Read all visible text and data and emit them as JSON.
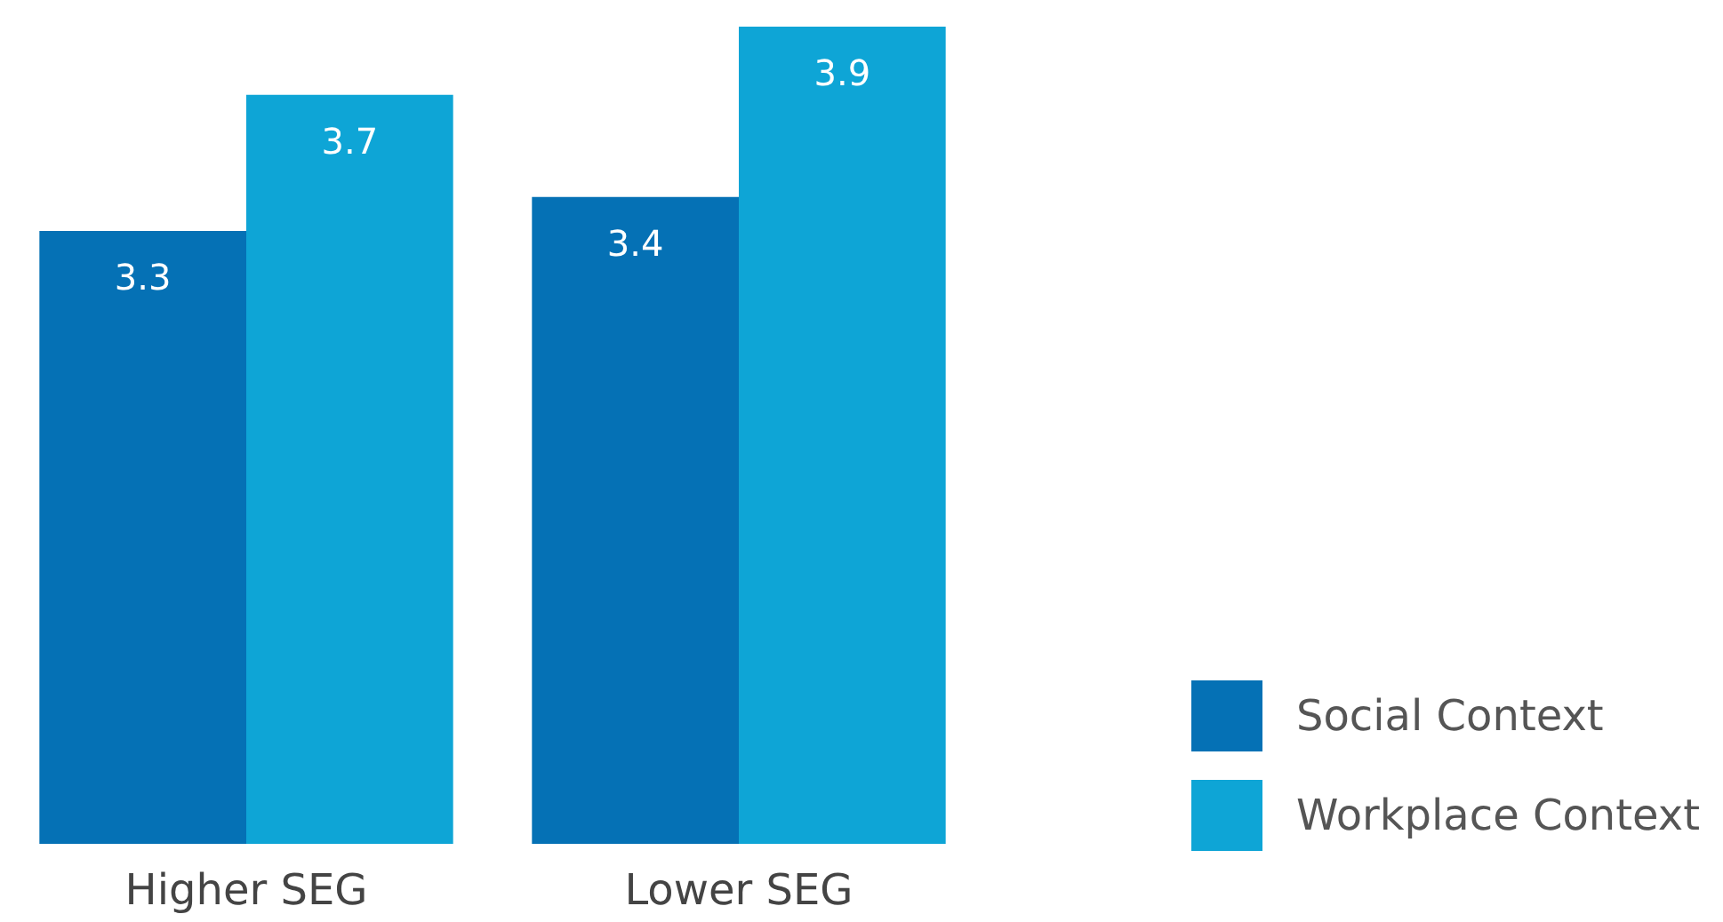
{
  "chart_data": {
    "type": "bar",
    "categories": [
      "Higher SEG",
      "Lower SEG"
    ],
    "series": [
      {
        "name": "Social Context",
        "color": "#0571b5",
        "values": [
          3.3,
          3.4
        ]
      },
      {
        "name": "Workplace Context",
        "color": "#0ea5d6",
        "values": [
          3.7,
          3.9
        ]
      }
    ],
    "ylim": [
      1.5,
      3.9
    ],
    "tick_labels": "x",
    "data_labels": true,
    "legend": "bottom right"
  }
}
